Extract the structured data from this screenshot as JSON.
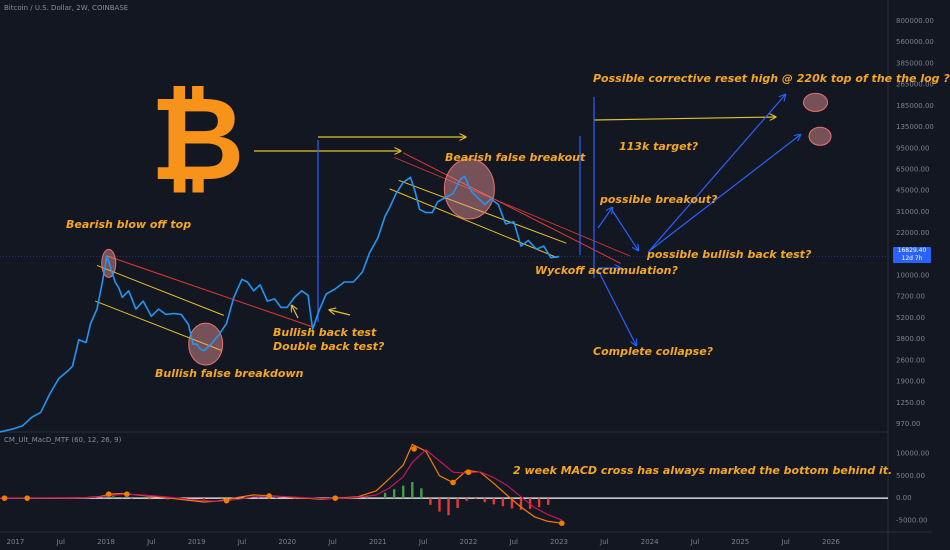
{
  "header": {
    "chart_title": "Bitcoin / U.S. Dollar, 2W, COINBASE",
    "indicator_title": "CM_Ult_MacD_MTF (60, 12, 26, 9)"
  },
  "price_tag": {
    "value": "16829.40",
    "countdown": "12d 7h"
  },
  "logo": {
    "glyph": "₿",
    "color": "#f7931a",
    "name": "bitcoin-logo-icon"
  },
  "annotations": {
    "bearish_blow_off_top": "Bearish blow off top",
    "bullish_false_breakdown": "Bullish false breakdown",
    "bullish_back_test": "Bullish back test",
    "double_back_test": "Double back test?",
    "bearish_false_breakout": "Bearish false breakout",
    "possible_reset_high": "Possible corrective reset high @ 220k top of the the log ?",
    "target_113k": "113k target?",
    "possible_breakout": "possible breakout?",
    "possible_bullish_back_test": "possible bullish back test?",
    "wyckoff": "Wyckoff accumulation?",
    "complete_collapse": "Complete collapse?",
    "macd_note": "2 week MACD cross has always marked the bottom behind it."
  },
  "colors": {
    "background": "#131722",
    "price_line": "#2196f3",
    "annotation": "#f5a623",
    "channel_yellow": "#e6c229",
    "channel_red": "#e53935",
    "arrow_blue": "#2962ff",
    "macd_line": "#f57c00",
    "signal_line": "#c2185b",
    "hist_pos": "#43a047",
    "hist_neg": "#e53935"
  },
  "chart_data": [
    {
      "type": "line",
      "title": "Bitcoin / U.S. Dollar, 2W, COINBASE",
      "y_scale": "log",
      "x_tick_labels": [
        "2017",
        "Jul",
        "2018",
        "Jul",
        "2019",
        "Jul",
        "2020",
        "Jul",
        "2021",
        "Jul",
        "2022",
        "Jul",
        "2023",
        "Jul",
        "2024",
        "Jul",
        "2025",
        "Jul",
        "2026"
      ],
      "y_tick_labels": [
        "800000.00",
        "560000.00",
        "385000.00",
        "265000.00",
        "185000.00",
        "135000.00",
        "95000.00",
        "65000.00",
        "45000.00",
        "31000.00",
        "22000.00",
        "15000.00",
        "10000.00",
        "7200.00",
        "5200.00",
        "3800.00",
        "2600.00",
        "1900.00",
        "1250.00",
        "970.00"
      ],
      "ylim": [
        900,
        900000
      ],
      "last_price": 16829.4,
      "series": [
        {
          "x": [
            2016.75,
            2016.9,
            2017.0,
            2017.1,
            2017.2,
            2017.3,
            2017.4,
            2017.5,
            2017.55,
            2017.62,
            2017.7,
            2017.75,
            2017.82,
            2017.88,
            2017.93,
            2017.97,
            2018.02,
            2018.06,
            2018.1,
            2018.17,
            2018.25,
            2018.33,
            2018.42,
            2018.5,
            2018.58,
            2018.67,
            2018.75,
            2018.83,
            2018.88,
            2018.92,
            2018.96,
            2019.0,
            2019.08,
            2019.17,
            2019.25,
            2019.33,
            2019.42,
            2019.48,
            2019.55,
            2019.62,
            2019.7,
            2019.78,
            2019.85,
            2019.92,
            2020.0,
            2020.08,
            2020.15,
            2020.2,
            2020.27,
            2020.35,
            2020.45,
            2020.55,
            2020.65,
            2020.75,
            2020.83,
            2020.92,
            2021.0,
            2021.05,
            2021.12,
            2021.2,
            2021.28,
            2021.33,
            2021.38,
            2021.45,
            2021.52,
            2021.58,
            2021.67,
            2021.75,
            2021.83,
            2021.88,
            2021.95,
            2022.02,
            2022.1,
            2022.17,
            2022.25,
            2022.33,
            2022.42,
            2022.5,
            2022.58,
            2022.67,
            2022.75,
            2022.83,
            2022.92
          ],
          "y": [
            900,
            950,
            1000,
            1150,
            1250,
            1700,
            2200,
            2500,
            2700,
            4200,
            4000,
            5500,
            7000,
            11000,
            17000,
            14000,
            11000,
            10000,
            8500,
            9500,
            7000,
            8000,
            6200,
            7000,
            6400,
            6500,
            6400,
            5400,
            3900,
            3900,
            3600,
            3500,
            3900,
            4600,
            5500,
            8500,
            11500,
            11000,
            9500,
            10500,
            8000,
            8300,
            7200,
            7200,
            8500,
            9500,
            8800,
            5000,
            6800,
            9000,
            9800,
            11000,
            11000,
            13000,
            18000,
            23000,
            33000,
            38000,
            48000,
            58000,
            63000,
            50000,
            37000,
            35000,
            35000,
            42000,
            45000,
            48000,
            61000,
            64000,
            50000,
            45000,
            40000,
            44000,
            40000,
            29000,
            30000,
            20000,
            22000,
            19000,
            20000,
            16500,
            16800
          ]
        }
      ]
    },
    {
      "type": "line",
      "title": "CM_Ult_MacD_MTF (60, 12, 26, 9)",
      "y_tick_labels": [
        "10000.00",
        "5000.00",
        "0.00",
        "-5000.00"
      ],
      "ylim": [
        -6000,
        13000
      ],
      "series": [
        {
          "name": "MACD",
          "x": [
            2016.75,
            2017.0,
            2017.25,
            2017.5,
            2017.7,
            2017.85,
            2017.97,
            2018.1,
            2018.25,
            2018.45,
            2018.65,
            2018.85,
            2019.0,
            2019.15,
            2019.35,
            2019.55,
            2019.75,
            2019.95,
            2020.15,
            2020.3,
            2020.5,
            2020.7,
            2020.9,
            2021.05,
            2021.2,
            2021.3,
            2021.45,
            2021.6,
            2021.75,
            2021.9,
            2022.05,
            2022.2,
            2022.35,
            2022.5,
            2022.65,
            2022.8,
            2022.95
          ],
          "y": [
            20,
            25,
            35,
            60,
            120,
            350,
            900,
            1050,
            750,
            350,
            -60,
            -520,
            -850,
            -650,
            60,
            720,
            520,
            160,
            -60,
            -250,
            60,
            300,
            1600,
            4400,
            7400,
            12000,
            10500,
            5000,
            3500,
            6200,
            5800,
            3300,
            600,
            -2000,
            -4200,
            -5200,
            -5600
          ]
        },
        {
          "name": "Signal",
          "x": [
            2016.75,
            2017.0,
            2017.25,
            2017.5,
            2017.7,
            2017.85,
            2017.97,
            2018.1,
            2018.25,
            2018.45,
            2018.65,
            2018.85,
            2019.0,
            2019.15,
            2019.35,
            2019.55,
            2019.75,
            2019.95,
            2020.15,
            2020.3,
            2020.5,
            2020.7,
            2020.9,
            2021.05,
            2021.2,
            2021.3,
            2021.45,
            2021.6,
            2021.75,
            2021.9,
            2022.05,
            2022.2,
            2022.35,
            2022.5,
            2022.65,
            2022.8,
            2022.95
          ],
          "y": [
            15,
            20,
            30,
            45,
            90,
            250,
            600,
            850,
            820,
            500,
            150,
            -250,
            -550,
            -700,
            -350,
            300,
            450,
            300,
            60,
            -100,
            -60,
            150,
            700,
            2300,
            4800,
            8000,
            10800,
            8300,
            5800,
            5600,
            5900,
            4600,
            2800,
            300,
            -2100,
            -3700,
            -4900
          ]
        }
      ],
      "histogram": {
        "x": [
          2017.8,
          2017.9,
          2018.0,
          2018.1,
          2018.2,
          2018.4,
          2018.6,
          2018.8,
          2019.0,
          2019.2,
          2019.4,
          2019.6,
          2019.8,
          2020.0,
          2020.2,
          2020.4,
          2020.6,
          2020.8,
          2021.0,
          2021.1,
          2021.2,
          2021.3,
          2021.4,
          2021.5,
          2021.6,
          2021.7,
          2021.8,
          2021.9,
          2022.0,
          2022.1,
          2022.2,
          2022.3,
          2022.4,
          2022.5,
          2022.6,
          2022.7,
          2022.8
        ],
        "y": [
          200,
          400,
          450,
          250,
          -100,
          -250,
          -300,
          -350,
          -300,
          -100,
          400,
          450,
          150,
          -150,
          -200,
          100,
          200,
          600,
          1200,
          2000,
          2800,
          3600,
          2200,
          -1500,
          -3000,
          -3800,
          -2200,
          -600,
          -200,
          -900,
          -1400,
          -1800,
          -2300,
          -2600,
          -2400,
          -2000,
          -1500
        ]
      },
      "cross_markers": {
        "x": [
          2016.8,
          2017.05,
          2017.95,
          2018.15,
          2019.25,
          2019.72,
          2020.45,
          2021.32,
          2021.75,
          2021.92,
          2022.95
        ],
        "y": [
          0,
          0,
          900,
          900,
          -560,
          500,
          0,
          11000,
          3500,
          5800,
          -5600
        ]
      }
    }
  ]
}
